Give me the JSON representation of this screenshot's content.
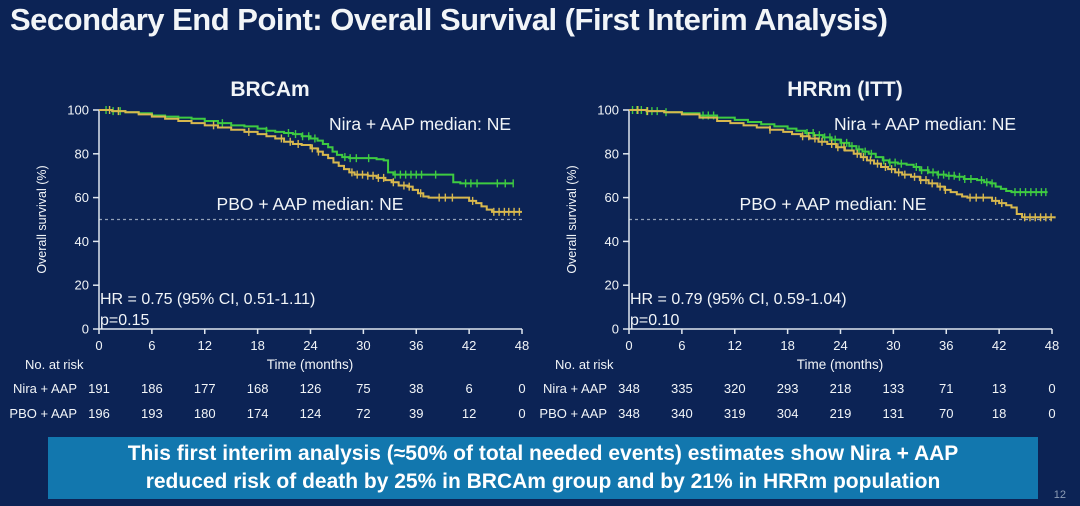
{
  "slide": {
    "title": "Secondary End Point: Overall Survival (First Interim Analysis)",
    "page_number": "12",
    "banner": {
      "line1": "This first interim analysis (≈50% of total needed events) estimates show Nira + AAP",
      "line2": "reduced risk of death by 25% in BRCAm group and by 21% in HRRm population"
    },
    "colors": {
      "bg": "#0c2355",
      "text": "#f2f5f8",
      "green": "#3ecb41",
      "gold": "#d8b84e",
      "banner": "#1277ae",
      "axis": "#dfe6ee",
      "dash": "#93a1b8",
      "pagenum": "#8d9cb5"
    }
  },
  "chart_data": [
    {
      "type": "line",
      "title": "BRCAm",
      "xlabel": "Time (months)",
      "ylabel": "Overall survival (%)",
      "xlim": [
        0,
        48
      ],
      "ylim": [
        0,
        100
      ],
      "xticks": [
        0,
        6,
        12,
        18,
        24,
        30,
        36,
        42,
        48
      ],
      "yticks": [
        0,
        20,
        40,
        60,
        80,
        100
      ],
      "reference_line_y": 50,
      "annotation": {
        "hr": "HR = 0.75 (95% CI, 0.51-1.11)",
        "p": "p=0.15"
      },
      "series": [
        {
          "name": "Nira + AAP",
          "label": "Nira + AAP median: NE",
          "color_key": "green",
          "points": [
            [
              0,
              100
            ],
            [
              1.5,
              99.5
            ],
            [
              3,
              99
            ],
            [
              4.5,
              98.5
            ],
            [
              6,
              97.5
            ],
            [
              7.5,
              97
            ],
            [
              9,
              96.5
            ],
            [
              10.5,
              96
            ],
            [
              12,
              95
            ],
            [
              13.5,
              94
            ],
            [
              15,
              93
            ],
            [
              16.5,
              92.5
            ],
            [
              18,
              91.5
            ],
            [
              19,
              90.5
            ],
            [
              20,
              90
            ],
            [
              21,
              89.5
            ],
            [
              22,
              89
            ],
            [
              23,
              88
            ],
            [
              24,
              87
            ],
            [
              24.8,
              86
            ],
            [
              25.4,
              84.5
            ],
            [
              26,
              83
            ],
            [
              26.5,
              81
            ],
            [
              27,
              79.5
            ],
            [
              27.6,
              78.5
            ],
            [
              28.4,
              78
            ],
            [
              31.5,
              77.5
            ],
            [
              32.3,
              77
            ],
            [
              32.8,
              71.5
            ],
            [
              33.4,
              70.5
            ],
            [
              39.6,
              70.5
            ],
            [
              40.2,
              67
            ],
            [
              41,
              66.5
            ],
            [
              47,
              66.5
            ]
          ],
          "censors": [
            0.8,
            1.6,
            2.4,
            14,
            19,
            21.5,
            22.3,
            23.1,
            23.8,
            24.5,
            27.9,
            28.5,
            29.2,
            30.6,
            33.6,
            34.2,
            34.8,
            35.4,
            36,
            36.6,
            38.2,
            41.6,
            42.2,
            42.9,
            45.2,
            46.1,
            47
          ]
        },
        {
          "name": "PBO + AAP",
          "label": "PBO + AAP median: NE",
          "color_key": "gold",
          "points": [
            [
              0,
              100
            ],
            [
              1.5,
              99.5
            ],
            [
              3,
              99
            ],
            [
              4.5,
              98
            ],
            [
              6,
              97
            ],
            [
              7.5,
              96
            ],
            [
              9,
              95
            ],
            [
              10.5,
              94
            ],
            [
              12,
              93
            ],
            [
              13.5,
              92
            ],
            [
              15,
              91
            ],
            [
              16.5,
              90
            ],
            [
              18,
              89
            ],
            [
              19,
              88
            ],
            [
              20,
              87
            ],
            [
              21,
              85.5
            ],
            [
              22,
              84.5
            ],
            [
              23,
              84
            ],
            [
              24,
              82.5
            ],
            [
              24.8,
              81
            ],
            [
              25.4,
              79.5
            ],
            [
              26,
              78
            ],
            [
              26.6,
              76
            ],
            [
              27.2,
              74.5
            ],
            [
              27.8,
              73
            ],
            [
              28.4,
              71.5
            ],
            [
              29,
              70.5
            ],
            [
              30.5,
              70
            ],
            [
              31.5,
              69
            ],
            [
              32.5,
              68
            ],
            [
              33.2,
              67
            ],
            [
              34,
              65.5
            ],
            [
              35,
              65
            ],
            [
              35.6,
              63.5
            ],
            [
              36.2,
              62
            ],
            [
              36.8,
              60.5
            ],
            [
              37.4,
              60
            ],
            [
              41.4,
              60
            ],
            [
              42,
              58.5
            ],
            [
              42.8,
              57.5
            ],
            [
              43.4,
              56
            ],
            [
              44,
              54.5
            ],
            [
              44.6,
              53.5
            ],
            [
              48,
              53.5
            ]
          ],
          "censors": [
            1.2,
            2.2,
            13,
            17,
            20.7,
            21.7,
            22.6,
            24.2,
            24.9,
            28.7,
            29.3,
            29.9,
            30.5,
            31.1,
            31.7,
            32.3,
            33.4,
            34.6,
            35.2,
            36.5,
            38.6,
            39.3,
            40.1,
            42.4,
            44.8,
            45.4,
            46,
            46.5,
            47.1,
            47.7
          ]
        }
      ],
      "risk_table": {
        "header": "No. at risk",
        "rows": [
          {
            "name": "Nira + AAP",
            "color_key": "green",
            "values": [
              191,
              186,
              177,
              168,
              126,
              75,
              38,
              6,
              0
            ]
          },
          {
            "name": "PBO + AAP",
            "color_key": "gold",
            "values": [
              196,
              193,
              180,
              174,
              124,
              72,
              39,
              12,
              0
            ]
          }
        ]
      }
    },
    {
      "type": "line",
      "title": "HRRm (ITT)",
      "xlabel": "Time (months)",
      "ylabel": "Overall survival (%)",
      "xlim": [
        0,
        48
      ],
      "ylim": [
        0,
        100
      ],
      "xticks": [
        0,
        6,
        12,
        18,
        24,
        30,
        36,
        42,
        48
      ],
      "yticks": [
        0,
        20,
        40,
        60,
        80,
        100
      ],
      "reference_line_y": 50,
      "annotation": {
        "hr": "HR = 0.79 (95% CI, 0.59-1.04)",
        "p": "p=0.10"
      },
      "series": [
        {
          "name": "Nira + AAP",
          "label": "Nira + AAP median: NE",
          "color_key": "green",
          "points": [
            [
              0,
              100
            ],
            [
              2,
              99.5
            ],
            [
              4,
              99
            ],
            [
              6,
              98.5
            ],
            [
              8,
              97.5
            ],
            [
              10,
              96.5
            ],
            [
              12,
              95.5
            ],
            [
              13.5,
              94.5
            ],
            [
              15,
              93.5
            ],
            [
              16.5,
              92.5
            ],
            [
              18,
              91.5
            ],
            [
              19,
              90.5
            ],
            [
              20,
              89.5
            ],
            [
              21,
              88.5
            ],
            [
              22,
              87.5
            ],
            [
              23,
              86.5
            ],
            [
              24,
              85
            ],
            [
              25,
              83.5
            ],
            [
              25.8,
              82
            ],
            [
              26.5,
              81
            ],
            [
              27.2,
              80
            ],
            [
              28,
              78.5
            ],
            [
              28.8,
              77
            ],
            [
              29.5,
              76
            ],
            [
              30.5,
              75.5
            ],
            [
              31.5,
              75
            ],
            [
              32.3,
              74
            ],
            [
              33,
              72.5
            ],
            [
              34,
              71.5
            ],
            [
              35,
              70.5
            ],
            [
              36,
              70
            ],
            [
              37,
              69.5
            ],
            [
              38,
              68.5
            ],
            [
              39.5,
              68
            ],
            [
              40.3,
              67
            ],
            [
              41,
              66.5
            ],
            [
              41.6,
              65
            ],
            [
              42.2,
              64
            ],
            [
              42.8,
              63
            ],
            [
              43.4,
              62.5
            ],
            [
              47.5,
              62.5
            ]
          ],
          "censors": [
            0.4,
            0.9,
            1.4,
            2,
            2.6,
            3.2,
            4.2,
            8.4,
            9,
            9.6,
            20.2,
            20.9,
            21.6,
            22.2,
            22.8,
            23.4,
            24.1,
            24.7,
            25.3,
            26.1,
            26.8,
            27.5,
            28.9,
            29.6,
            30.2,
            30.9,
            32.6,
            33.2,
            33.9,
            34.5,
            35.1,
            35.7,
            36.3,
            36.9,
            37.5,
            38.1,
            38.8,
            40,
            40.6,
            41.2,
            43.8,
            44.4,
            45,
            45.6,
            46.2,
            46.8,
            47.3
          ]
        },
        {
          "name": "PBO + AAP",
          "label": "PBO + AAP median: NE",
          "color_key": "gold",
          "points": [
            [
              0,
              100
            ],
            [
              2,
              99.5
            ],
            [
              4,
              99
            ],
            [
              6,
              98
            ],
            [
              8,
              96.5
            ],
            [
              10,
              95
            ],
            [
              11.5,
              94
            ],
            [
              13,
              93
            ],
            [
              14.5,
              92
            ],
            [
              16,
              91
            ],
            [
              17.5,
              90
            ],
            [
              18.5,
              89
            ],
            [
              19.5,
              88
            ],
            [
              20.5,
              87
            ],
            [
              21.5,
              85.5
            ],
            [
              22.5,
              84.5
            ],
            [
              23.5,
              83
            ],
            [
              24.5,
              81.5
            ],
            [
              25.5,
              80
            ],
            [
              26.3,
              78.5
            ],
            [
              27,
              77
            ],
            [
              27.8,
              75.5
            ],
            [
              28.6,
              74
            ],
            [
              29.4,
              73
            ],
            [
              30.2,
              71.5
            ],
            [
              31,
              70.5
            ],
            [
              32,
              69.5
            ],
            [
              33,
              68
            ],
            [
              34,
              66.5
            ],
            [
              35,
              65
            ],
            [
              35.8,
              63.5
            ],
            [
              36.5,
              62.5
            ],
            [
              37.2,
              61.5
            ],
            [
              37.8,
              60.5
            ],
            [
              38.4,
              60
            ],
            [
              40.6,
              60
            ],
            [
              41.2,
              58.5
            ],
            [
              42,
              57.5
            ],
            [
              42.8,
              56.5
            ],
            [
              43.4,
              55.5
            ],
            [
              44,
              52.5
            ],
            [
              44.6,
              51
            ],
            [
              48.3,
              50.5
            ]
          ],
          "censors": [
            1,
            2.1,
            16,
            19.7,
            20.4,
            21.1,
            21.9,
            23,
            23.7,
            24.4,
            25.9,
            26.6,
            27.4,
            28.2,
            29.1,
            29.8,
            30.6,
            31.3,
            32.4,
            33.1,
            33.7,
            34.4,
            35.3,
            35.9,
            38.7,
            39.4,
            40.2,
            41.6,
            42.3,
            44.9,
            45.5,
            46.1,
            46.7,
            47.3,
            47.9
          ]
        }
      ],
      "risk_table": {
        "header": "No. at risk",
        "rows": [
          {
            "name": "Nira + AAP",
            "color_key": "green",
            "values": [
              348,
              335,
              320,
              293,
              218,
              133,
              71,
              13,
              0
            ]
          },
          {
            "name": "PBO + AAP",
            "color_key": "gold",
            "values": [
              348,
              340,
              319,
              304,
              219,
              131,
              70,
              18,
              0
            ]
          }
        ]
      }
    }
  ]
}
